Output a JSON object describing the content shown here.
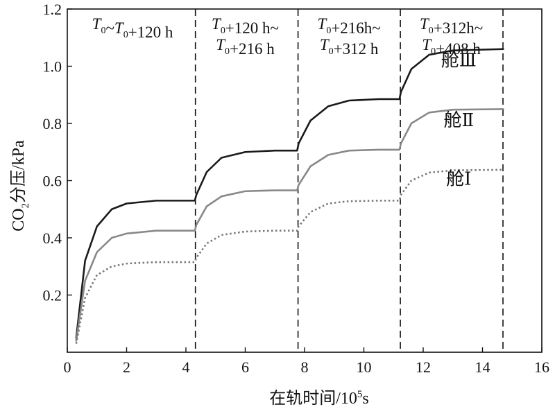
{
  "chart_data": {
    "type": "line",
    "title": "",
    "xlabel": "在轨时间/10⁵s",
    "xlabel_parts": {
      "text": "在轨时间/10",
      "sup": "5",
      "unit": "s"
    },
    "ylabel": "CO₂分压/kPa",
    "ylabel_parts": {
      "pre": "CO",
      "sub": "2",
      "post": "分压/kPa"
    },
    "xlim": [
      0,
      16
    ],
    "ylim": [
      0,
      1.2
    ],
    "x_ticks": [
      0,
      2,
      4,
      6,
      8,
      10,
      12,
      14,
      16
    ],
    "y_ticks": [
      0.2,
      0.4,
      0.6,
      0.8,
      1.0,
      1.2
    ],
    "y_tick_labels": [
      "0.2",
      "0.4",
      "0.6",
      "0.8",
      "1.0",
      "1.2"
    ],
    "x_tick_labels": [
      "0",
      "2",
      "4",
      "6",
      "8",
      "10",
      "12",
      "14",
      "16"
    ],
    "grid": false,
    "period_boundaries": [
      4.32,
      7.78,
      11.23,
      14.69
    ],
    "period_labels": [
      {
        "lines": [
          "T0~T0+120 h"
        ],
        "x_center": 2.2
      },
      {
        "lines": [
          "T0+120 h~",
          "T0+216 h"
        ],
        "x_center": 6.0
      },
      {
        "lines": [
          "T0+216h~",
          "T0+312 h"
        ],
        "x_center": 9.5
      },
      {
        "lines": [
          "T0+312h~",
          "T0+408 h"
        ],
        "x_center": 12.95
      }
    ],
    "series": [
      {
        "name": "舱Ⅲ",
        "color": "#1a1a1a",
        "style": "solid",
        "x": [
          0.3,
          0.6,
          1.0,
          1.5,
          2.0,
          3.0,
          4.3,
          4.35,
          4.7,
          5.2,
          6.0,
          7.0,
          7.75,
          7.8,
          8.2,
          8.8,
          9.5,
          10.5,
          11.2,
          11.25,
          11.6,
          12.2,
          13.0,
          14.7
        ],
        "values": [
          0.05,
          0.32,
          0.44,
          0.5,
          0.52,
          0.53,
          0.53,
          0.55,
          0.63,
          0.68,
          0.7,
          0.705,
          0.705,
          0.73,
          0.81,
          0.86,
          0.88,
          0.885,
          0.885,
          0.91,
          0.99,
          1.04,
          1.055,
          1.06
        ]
      },
      {
        "name": "舱Ⅱ",
        "color": "#888888",
        "style": "solid",
        "x": [
          0.3,
          0.6,
          1.0,
          1.5,
          2.0,
          3.0,
          4.3,
          4.35,
          4.7,
          5.2,
          6.0,
          7.0,
          7.75,
          7.8,
          8.2,
          8.8,
          9.5,
          10.5,
          11.2,
          11.25,
          11.6,
          12.2,
          13.0,
          14.7
        ],
        "values": [
          0.04,
          0.25,
          0.35,
          0.4,
          0.415,
          0.425,
          0.425,
          0.445,
          0.51,
          0.545,
          0.563,
          0.566,
          0.566,
          0.585,
          0.65,
          0.69,
          0.705,
          0.708,
          0.708,
          0.73,
          0.8,
          0.838,
          0.848,
          0.85
        ]
      },
      {
        "name": "舱Ⅰ",
        "color": "#777777",
        "style": "dotted",
        "x": [
          0.3,
          0.6,
          1.0,
          1.5,
          2.0,
          3.0,
          4.3,
          4.35,
          4.7,
          5.2,
          6.0,
          7.0,
          7.75,
          7.8,
          8.2,
          8.8,
          9.5,
          10.5,
          11.2,
          11.25,
          11.6,
          12.2,
          13.0,
          14.7
        ],
        "values": [
          0.03,
          0.19,
          0.27,
          0.3,
          0.31,
          0.315,
          0.315,
          0.33,
          0.38,
          0.41,
          0.422,
          0.425,
          0.425,
          0.44,
          0.49,
          0.52,
          0.528,
          0.53,
          0.53,
          0.55,
          0.6,
          0.628,
          0.636,
          0.638
        ]
      }
    ],
    "series_labels": [
      {
        "text": "舱Ⅲ",
        "x": 13.2,
        "y": 1.0
      },
      {
        "text": "舱Ⅱ",
        "x": 13.2,
        "y": 0.79
      },
      {
        "text": "舱Ⅰ",
        "x": 13.2,
        "y": 0.585
      }
    ]
  }
}
